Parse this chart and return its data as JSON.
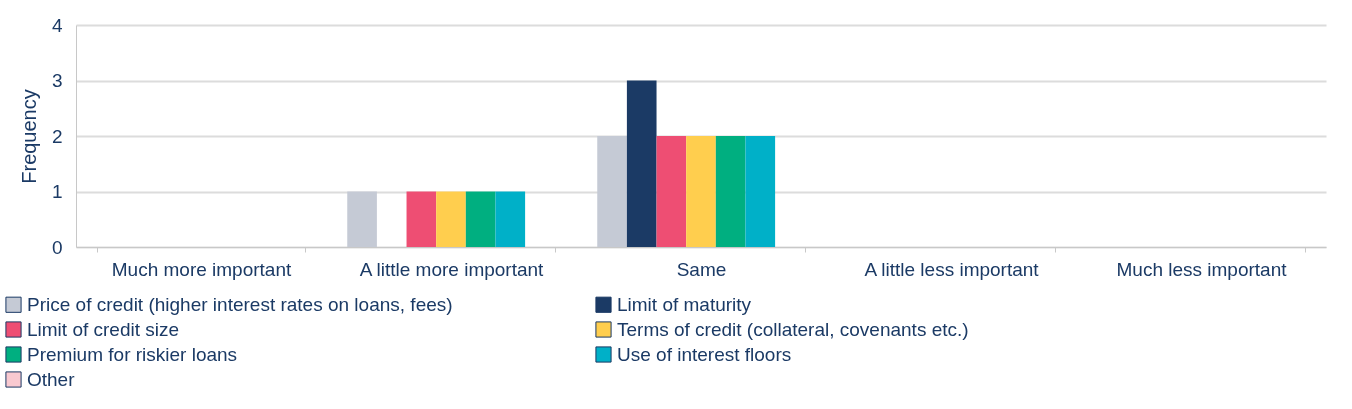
{
  "chart_data": {
    "type": "bar",
    "ylabel": "Frequency",
    "categories": [
      "Much more important",
      "A little more important",
      "Same",
      "A little less important",
      "Much less important"
    ],
    "series": [
      {
        "name": "Price of credit (higher interest rates on loans, fees)",
        "color": "#c5cad5",
        "values": [
          0,
          1,
          2,
          0,
          0
        ]
      },
      {
        "name": "Limit of maturity",
        "color": "#1b3a65",
        "values": [
          0,
          0,
          3,
          0,
          0
        ]
      },
      {
        "name": "Limit of credit size",
        "color": "#ee4e73",
        "values": [
          0,
          1,
          2,
          0,
          0
        ]
      },
      {
        "name": "Terms of credit (collateral, covenants etc.)",
        "color": "#ffce4e",
        "values": [
          0,
          1,
          2,
          0,
          0
        ]
      },
      {
        "name": "Premium for riskier loans",
        "color": "#00af80",
        "values": [
          0,
          1,
          2,
          0,
          0
        ]
      },
      {
        "name": "Use of interest floors",
        "color": "#00b0c8",
        "values": [
          0,
          1,
          2,
          0,
          0
        ]
      },
      {
        "name": "Other",
        "color": "#f9c9d0",
        "values": [
          0,
          0,
          0,
          0,
          0
        ]
      }
    ],
    "ylim": [
      0,
      4
    ],
    "yticks": [
      0,
      1,
      2,
      3,
      4
    ],
    "grid": "y",
    "legend": "bottom"
  }
}
